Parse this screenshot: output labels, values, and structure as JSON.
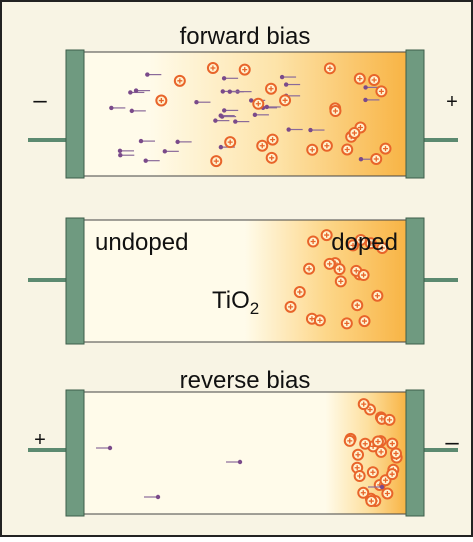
{
  "panels": [
    {
      "title": "forward bias",
      "left_sign": "–",
      "right_sign": "+"
    },
    {
      "left_label": "undoped",
      "right_label": "doped",
      "material": {
        "base": "TiO",
        "subscript": "2"
      }
    },
    {
      "title": "reverse bias",
      "left_sign": "+",
      "right_sign": "–"
    }
  ]
}
